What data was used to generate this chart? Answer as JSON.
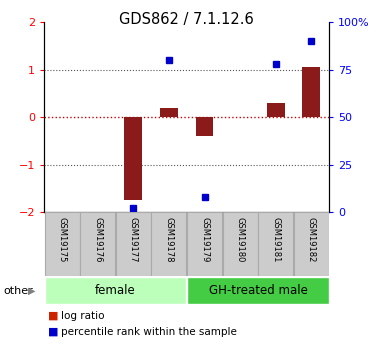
{
  "title": "GDS862 / 7.1.12.6",
  "samples": [
    "GSM19175",
    "GSM19176",
    "GSM19177",
    "GSM19178",
    "GSM19179",
    "GSM19180",
    "GSM19181",
    "GSM19182"
  ],
  "log_ratio": [
    0.0,
    0.0,
    -1.75,
    0.2,
    -0.4,
    0.0,
    0.3,
    1.05
  ],
  "percentile_rank": [
    null,
    null,
    2.0,
    80.0,
    8.0,
    null,
    78.0,
    90.0
  ],
  "groups": [
    {
      "label": "female",
      "start": 0,
      "end": 3,
      "color": "#bbffbb"
    },
    {
      "label": "GH-treated male",
      "start": 4,
      "end": 7,
      "color": "#44cc44"
    }
  ],
  "ylim_left": [
    -2,
    2
  ],
  "ylim_right": [
    0,
    100
  ],
  "bar_color": "#8b1a1a",
  "dot_color": "#0000cc",
  "zero_line_color": "#cc0000",
  "dotted_line_color": "#555555",
  "sample_box_color": "#cccccc",
  "sample_box_edge": "#aaaaaa",
  "background_color": "#ffffff",
  "legend_items": [
    {
      "label": "log ratio",
      "color": "#cc2200"
    },
    {
      "label": "percentile rank within the sample",
      "color": "#0000cc"
    }
  ],
  "other_label": "other"
}
